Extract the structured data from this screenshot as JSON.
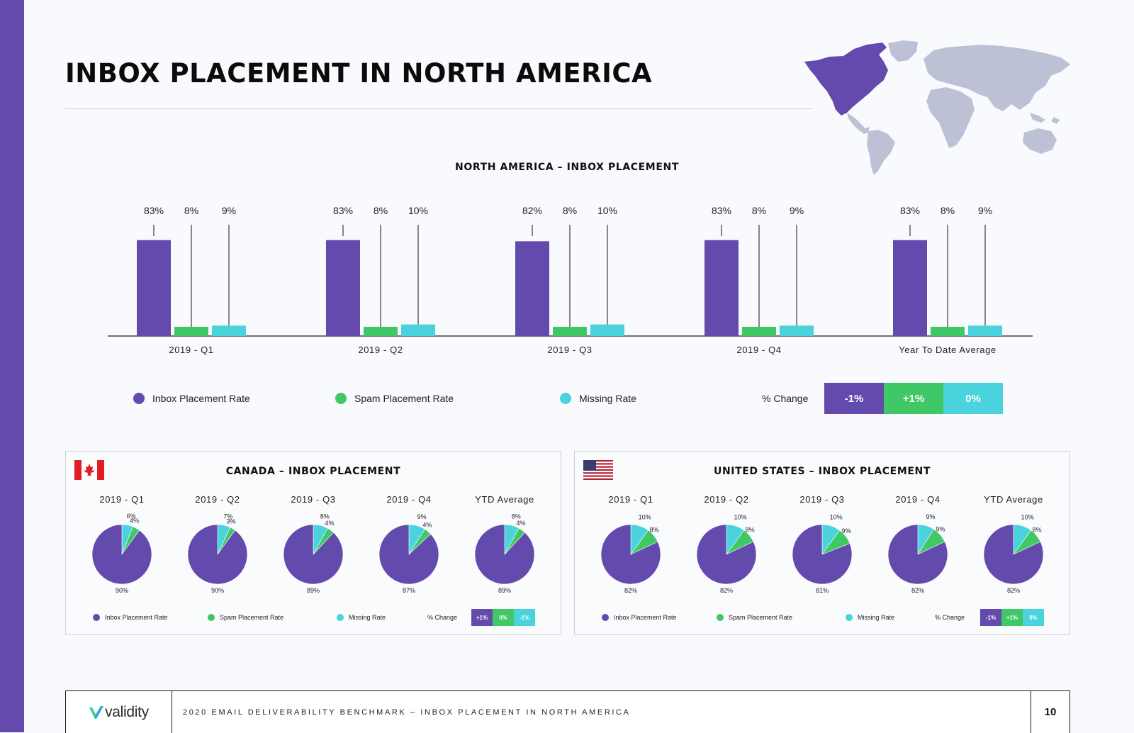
{
  "colors": {
    "inbox": "#634aad",
    "spam": "#40c866",
    "missing": "#4ad3dc",
    "accent": "#644aad"
  },
  "page_title": "INBOX PLACEMENT IN NORTH AMERICA",
  "main": {
    "title": "NORTH AMERICA – INBOX PLACEMENT",
    "legend": [
      "Inbox Placement Rate",
      "Spam Placement Rate",
      "Missing Rate"
    ],
    "change_label": "% Change",
    "change_values": [
      "-1%",
      "+1%",
      "0%"
    ]
  },
  "chart_data": [
    {
      "type": "bar",
      "title": "NORTH AMERICA – INBOX PLACEMENT",
      "categories": [
        "2019 - Q1",
        "2019 - Q2",
        "2019 - Q3",
        "2019 - Q4",
        "Year To Date Average"
      ],
      "series": [
        {
          "name": "Inbox Placement Rate",
          "values": [
            83,
            83,
            82,
            83,
            83
          ]
        },
        {
          "name": "Spam Placement Rate",
          "values": [
            8,
            8,
            8,
            8,
            8
          ]
        },
        {
          "name": "Missing Rate",
          "values": [
            9,
            10,
            10,
            9,
            9
          ]
        }
      ],
      "data_labels": [
        [
          "83%",
          "8%",
          "9%"
        ],
        [
          "83%",
          "8%",
          "10%"
        ],
        [
          "82%",
          "8%",
          "10%"
        ],
        [
          "83%",
          "8%",
          "9%"
        ],
        [
          "83%",
          "8%",
          "9%"
        ]
      ],
      "legend_position": "bottom",
      "grid": false
    },
    {
      "type": "pie",
      "title": "CANADA – INBOX PLACEMENT",
      "categories": [
        "2019 - Q1",
        "2019 - Q2",
        "2019 - Q3",
        "2019 - Q4",
        "YTD Average"
      ],
      "series": [
        {
          "name": "Inbox Placement Rate",
          "values": [
            90,
            90,
            89,
            87,
            89
          ]
        },
        {
          "name": "Spam Placement Rate",
          "values": [
            4,
            3,
            4,
            4,
            4
          ]
        },
        {
          "name": "Missing Rate",
          "values": [
            6,
            7,
            8,
            9,
            8
          ]
        }
      ],
      "data_labels": [
        [
          "90%",
          "4%",
          "6%"
        ],
        [
          "90%",
          "3%",
          "7%"
        ],
        [
          "89%",
          "4%",
          "8%"
        ],
        [
          "87%",
          "4%",
          "9%"
        ],
        [
          "89%",
          "4%",
          "8%"
        ]
      ],
      "legend": [
        "Inbox Placement Rate",
        "Spam Placement Rate",
        "Missing Rate"
      ],
      "change_label": "% Change",
      "change_values": [
        "+1%",
        "0%",
        "-1%"
      ]
    },
    {
      "type": "pie",
      "title": "UNITED STATES – INBOX PLACEMENT",
      "categories": [
        "2019 - Q1",
        "2019 - Q2",
        "2019 - Q3",
        "2019 - Q4",
        "YTD Average"
      ],
      "series": [
        {
          "name": "Inbox Placement Rate",
          "values": [
            82,
            82,
            81,
            82,
            82
          ]
        },
        {
          "name": "Spam Placement Rate",
          "values": [
            8,
            8,
            9,
            9,
            8
          ]
        },
        {
          "name": "Missing Rate",
          "values": [
            10,
            10,
            10,
            9,
            10
          ]
        }
      ],
      "data_labels": [
        [
          "82%",
          "8%",
          "10%"
        ],
        [
          "82%",
          "8%",
          "10%"
        ],
        [
          "81%",
          "9%",
          "10%"
        ],
        [
          "82%",
          "9%",
          "9%"
        ],
        [
          "82%",
          "8%",
          "10%"
        ]
      ],
      "legend": [
        "Inbox Placement Rate",
        "Spam Placement Rate",
        "Missing Rate"
      ],
      "change_label": "% Change",
      "change_values": [
        "-1%",
        "+1%",
        "0%"
      ]
    }
  ],
  "footer": {
    "logo_text": "validity",
    "caption": "2020 EMAIL DELIVERABILITY BENCHMARK – INBOX PLACEMENT IN NORTH AMERICA",
    "page_number": "10"
  },
  "icons": {
    "world_map": "world-map-icon",
    "canada_flag": "canada-flag-icon",
    "us_flag": "us-flag-icon",
    "logo_mark": "validity-check-icon"
  }
}
